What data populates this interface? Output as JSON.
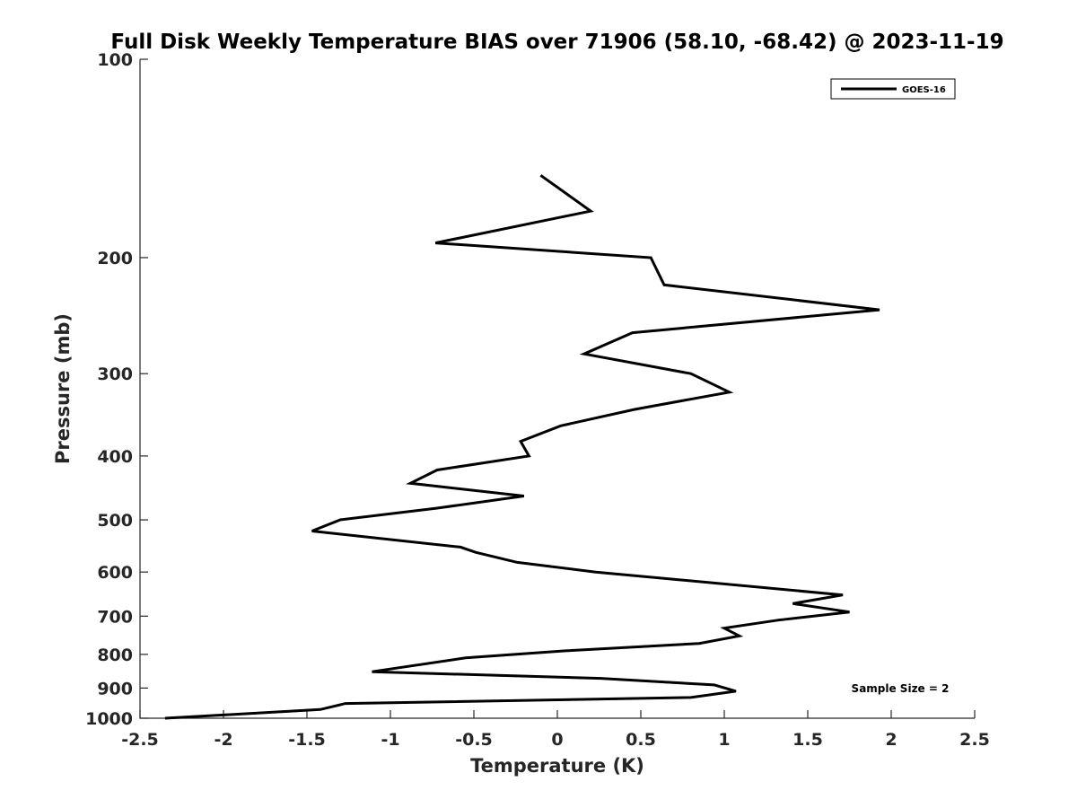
{
  "chart_data": {
    "type": "line",
    "title": "Full Disk Weekly Temperature BIAS over 71906 (58.10, -68.42) @ 2023-11-19",
    "xlabel": "Temperature (K)",
    "ylabel": "Pressure (mb)",
    "xlim": [
      -2.5,
      2.5
    ],
    "ylim": [
      100,
      1000
    ],
    "yscale": "log",
    "y_reversed": true,
    "x_ticks": [
      -2.5,
      -2,
      -1.5,
      -1,
      -0.5,
      0,
      0.5,
      1,
      1.5,
      2,
      2.5
    ],
    "x_tick_labels": [
      "-2.5",
      "-2",
      "-1.5",
      "-1",
      "-0.5",
      "0",
      "0.5",
      "1",
      "1.5",
      "2",
      "2.5"
    ],
    "y_ticks": [
      100,
      200,
      300,
      400,
      500,
      600,
      700,
      800,
      900,
      1000
    ],
    "y_tick_labels": [
      "100",
      "200",
      "300",
      "400",
      "500",
      "600",
      "700",
      "800",
      "900",
      "1000"
    ],
    "grid": false,
    "legend_position": "top-right",
    "line_color": "#000000",
    "series": [
      {
        "name": "GOES-16",
        "x": [
          -0.1,
          0.2,
          -0.73,
          0.56,
          0.64,
          1.93,
          0.45,
          0.16,
          0.8,
          1.03,
          0.46,
          0.02,
          -0.22,
          -0.17,
          -0.72,
          -0.88,
          -0.2,
          -0.72,
          -1.3,
          -1.47,
          -0.58,
          -0.49,
          -0.24,
          0.23,
          1.71,
          1.41,
          1.75,
          1.32,
          1.0,
          1.09,
          0.85,
          0.05,
          -0.55,
          -1.11,
          0.26,
          0.94,
          1.07,
          0.8,
          -1.27,
          -1.42,
          -2.35
        ],
        "y": [
          150,
          170,
          190,
          200,
          220,
          240,
          260,
          280,
          300,
          320,
          340,
          360,
          380,
          400,
          420,
          440,
          460,
          480,
          500,
          520,
          550,
          560,
          580,
          600,
          650,
          670,
          690,
          710,
          730,
          750,
          770,
          790,
          810,
          850,
          870,
          890,
          910,
          930,
          950,
          970,
          1000
        ]
      }
    ],
    "annotation": "Sample Size = 2"
  }
}
